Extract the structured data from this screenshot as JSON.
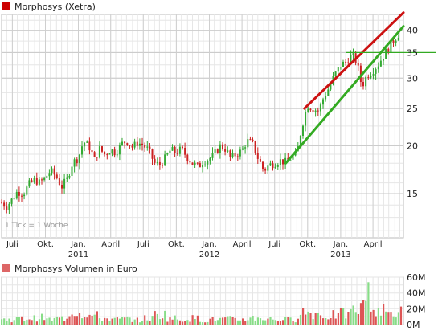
{
  "chart_data": [
    {
      "type": "candlestick",
      "legend": "Morphosys (Xetra)",
      "legend_color": "#cc0000",
      "note": "1 Tick = 1 Woche",
      "y_scale": "log",
      "ylim": [
        11.5,
        44
      ],
      "yticks": [
        15,
        20,
        25,
        30,
        35,
        40
      ],
      "ytick_labels": [
        "15",
        "20",
        "25",
        "30",
        "35",
        "40"
      ],
      "x_range": [
        "2010-06-01",
        "2013-06-25"
      ],
      "month_ticks": [
        {
          "date": "2010-07-01",
          "label": "Juli"
        },
        {
          "date": "2010-10-01",
          "label": "Okt."
        },
        {
          "date": "2011-01-01",
          "label": "Jan."
        },
        {
          "date": "2011-04-01",
          "label": "April"
        },
        {
          "date": "2011-07-01",
          "label": "Juli"
        },
        {
          "date": "2011-10-01",
          "label": "Okt."
        },
        {
          "date": "2012-01-01",
          "label": "Jan."
        },
        {
          "date": "2012-04-01",
          "label": "April"
        },
        {
          "date": "2012-07-01",
          "label": "Juli"
        },
        {
          "date": "2012-10-01",
          "label": "Okt."
        },
        {
          "date": "2013-01-01",
          "label": "Jan."
        },
        {
          "date": "2013-04-01",
          "label": "April"
        }
      ],
      "year_labels": [
        {
          "date": "2011-01-01",
          "label": "2011"
        },
        {
          "date": "2012-01-01",
          "label": "2012"
        },
        {
          "date": "2013-01-01",
          "label": "2013"
        }
      ],
      "up_color": "#33aa33",
      "down_color": "#cc2222",
      "close_points": [
        [
          "2010-06-01",
          14.2
        ],
        [
          "2010-06-15",
          13.9
        ],
        [
          "2010-07-01",
          14.5
        ],
        [
          "2010-07-15",
          15.2
        ],
        [
          "2010-08-01",
          15.0
        ],
        [
          "2010-08-15",
          15.8
        ],
        [
          "2010-09-01",
          16.3
        ],
        [
          "2010-09-15",
          16.0
        ],
        [
          "2010-10-01",
          16.5
        ],
        [
          "2010-10-15",
          17.2
        ],
        [
          "2010-11-01",
          16.6
        ],
        [
          "2010-11-15",
          15.6
        ],
        [
          "2010-12-01",
          16.4
        ],
        [
          "2010-12-15",
          18.0
        ],
        [
          "2011-01-01",
          18.6
        ],
        [
          "2011-01-15",
          20.5
        ],
        [
          "2011-02-01",
          19.8
        ],
        [
          "2011-02-15",
          18.4
        ],
        [
          "2011-03-01",
          19.6
        ],
        [
          "2011-03-15",
          19.0
        ],
        [
          "2011-04-01",
          19.5
        ],
        [
          "2011-04-15",
          19.2
        ],
        [
          "2011-05-01",
          20.2
        ],
        [
          "2011-05-15",
          20.6
        ],
        [
          "2011-06-01",
          19.8
        ],
        [
          "2011-06-15",
          20.4
        ],
        [
          "2011-07-01",
          20.0
        ],
        [
          "2011-07-15",
          19.5
        ],
        [
          "2011-08-01",
          18.0
        ],
        [
          "2011-08-15",
          17.8
        ],
        [
          "2011-09-01",
          18.6
        ],
        [
          "2011-09-15",
          19.5
        ],
        [
          "2011-10-01",
          19.2
        ],
        [
          "2011-10-15",
          19.6
        ],
        [
          "2011-11-01",
          18.6
        ],
        [
          "2011-11-15",
          18.0
        ],
        [
          "2011-12-01",
          17.6
        ],
        [
          "2011-12-15",
          18.2
        ],
        [
          "2012-01-01",
          18.5
        ],
        [
          "2012-01-15",
          19.0
        ],
        [
          "2012-02-01",
          20.0
        ],
        [
          "2012-02-15",
          19.6
        ],
        [
          "2012-03-01",
          18.5
        ],
        [
          "2012-03-15",
          19.0
        ],
        [
          "2012-04-01",
          19.4
        ],
        [
          "2012-04-15",
          20.6
        ],
        [
          "2012-05-01",
          20.2
        ],
        [
          "2012-05-15",
          18.6
        ],
        [
          "2012-06-01",
          17.2
        ],
        [
          "2012-06-15",
          17.8
        ],
        [
          "2012-07-01",
          18.0
        ],
        [
          "2012-07-15",
          18.3
        ],
        [
          "2012-08-01",
          18.1
        ],
        [
          "2012-08-15",
          18.6
        ],
        [
          "2012-09-01",
          19.0
        ],
        [
          "2012-09-15",
          22.5
        ],
        [
          "2012-10-01",
          25.5
        ],
        [
          "2012-10-15",
          25.0
        ],
        [
          "2012-11-01",
          24.6
        ],
        [
          "2012-11-15",
          26.8
        ],
        [
          "2012-12-01",
          28.5
        ],
        [
          "2012-12-15",
          30.5
        ],
        [
          "2013-01-01",
          32.5
        ],
        [
          "2013-01-15",
          33.0
        ],
        [
          "2013-02-01",
          34.5
        ],
        [
          "2013-02-15",
          33.0
        ],
        [
          "2013-03-01",
          28.5
        ],
        [
          "2013-03-15",
          30.5
        ],
        [
          "2013-04-01",
          31.5
        ],
        [
          "2013-04-15",
          32.5
        ],
        [
          "2013-05-01",
          34.5
        ],
        [
          "2013-05-15",
          36.0
        ],
        [
          "2013-06-01",
          38.0
        ],
        [
          "2013-06-15",
          39.5
        ]
      ],
      "trend_lines": [
        {
          "color": "#cc1111",
          "from": [
            "2012-09-22",
            25.0
          ],
          "to": [
            "2013-06-25",
            44.5
          ]
        },
        {
          "color": "#33aa22",
          "from": [
            "2012-08-01",
            18.0
          ],
          "to": [
            "2013-06-25",
            41.0
          ]
        }
      ],
      "hline": {
        "color": "#33aa22",
        "value": 35.0,
        "from": "2013-01-15"
      }
    },
    {
      "type": "bar",
      "legend": "Morphosys Volumen in Euro",
      "legend_color": "#dd6666",
      "ylim": [
        0,
        60
      ],
      "yticks": [
        0,
        20,
        40,
        60
      ],
      "ytick_labels": [
        "0M",
        "20M",
        "40M",
        "60M"
      ],
      "up_color": "#88dd88",
      "down_color": "#dd5555",
      "volume_points": [
        [
          "2010-06-01",
          8
        ],
        [
          "2010-07-01",
          9
        ],
        [
          "2010-08-01",
          10
        ],
        [
          "2010-09-01",
          11
        ],
        [
          "2010-10-01",
          8
        ],
        [
          "2010-11-01",
          10
        ],
        [
          "2010-12-01",
          22
        ],
        [
          "2011-01-01",
          18
        ],
        [
          "2011-02-01",
          14
        ],
        [
          "2011-03-01",
          10
        ],
        [
          "2011-04-01",
          8
        ],
        [
          "2011-05-01",
          9
        ],
        [
          "2011-06-01",
          7
        ],
        [
          "2011-07-01",
          10
        ],
        [
          "2011-08-01",
          16
        ],
        [
          "2011-09-01",
          10
        ],
        [
          "2011-10-01",
          8
        ],
        [
          "2011-11-01",
          10
        ],
        [
          "2011-12-01",
          7
        ],
        [
          "2012-01-01",
          8
        ],
        [
          "2012-02-01",
          9
        ],
        [
          "2012-03-01",
          8
        ],
        [
          "2012-04-01",
          9
        ],
        [
          "2012-05-01",
          11
        ],
        [
          "2012-06-01",
          9
        ],
        [
          "2012-07-01",
          8
        ],
        [
          "2012-08-01",
          8
        ],
        [
          "2012-09-01",
          20
        ],
        [
          "2012-10-01",
          18
        ],
        [
          "2012-11-01",
          14
        ],
        [
          "2012-12-01",
          15
        ],
        [
          "2013-01-01",
          17
        ],
        [
          "2013-02-01",
          24
        ],
        [
          "2013-03-01",
          46
        ],
        [
          "2013-04-01",
          22
        ],
        [
          "2013-05-01",
          18
        ],
        [
          "2013-06-01",
          20
        ]
      ]
    }
  ]
}
